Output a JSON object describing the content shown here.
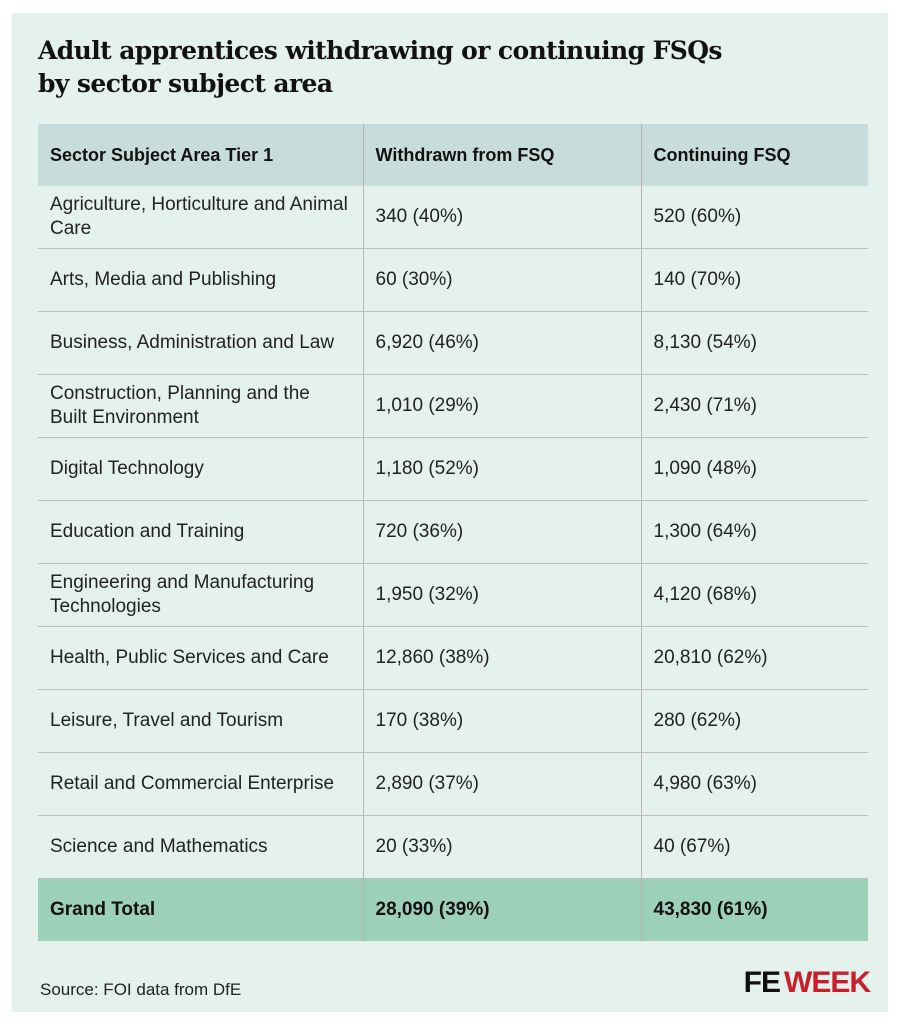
{
  "title": "Adult apprentices withdrawing or continuing FSQs by sector subject area",
  "headers": [
    "Sector Subject Area Tier 1",
    "Withdrawn from FSQ",
    "Continuing FSQ"
  ],
  "rows": [
    [
      "Agriculture, Horticulture and Animal Care",
      "340 (40%)",
      "520 (60%)"
    ],
    [
      "Arts, Media and Publishing",
      "60 (30%)",
      "140 (70%)"
    ],
    [
      "Business, Administration and Law",
      "6,920 (46%)",
      "8,130 (54%)"
    ],
    [
      "Construction, Planning and the Built Environment",
      "1,010 (29%)",
      "2,430 (71%)"
    ],
    [
      "Digital Technology",
      "1,180 (52%)",
      "1,090 (48%)"
    ],
    [
      "Education and Training",
      "720 (36%)",
      "1,300 (64%)"
    ],
    [
      "Engineering and Manufacturing Technologies",
      "1,950 (32%)",
      "4,120 (68%)"
    ],
    [
      "Health, Public Services and Care",
      "12,860 (38%)",
      "20,810 (62%)"
    ],
    [
      "Leisure, Travel and Tourism",
      "170 (38%)",
      "280 (62%)"
    ],
    [
      "Retail and Commercial Enterprise",
      "2,890 (37%)",
      "4,980 (63%)"
    ],
    [
      "Science and Mathematics",
      "20 (33%)",
      "40 (67%)"
    ]
  ],
  "total": [
    "Grand Total",
    "28,090 (39%)",
    "43,830 (61%)"
  ],
  "source": "Source: FOI data from DfE",
  "logo": {
    "fe": "FE",
    "week": "WEEK"
  }
}
